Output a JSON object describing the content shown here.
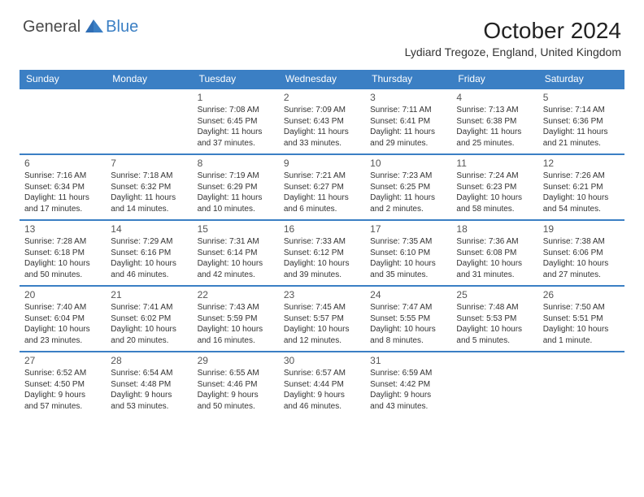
{
  "logo": {
    "text1": "General",
    "text2": "Blue"
  },
  "title": "October 2024",
  "location": "Lydiard Tregoze, England, United Kingdom",
  "colors": {
    "header_bg": "#3b7fc4",
    "header_text": "#ffffff",
    "week_border": "#3b7fc4",
    "body_text": "#333333",
    "daynum_text": "#555555",
    "background": "#ffffff"
  },
  "day_labels": [
    "Sunday",
    "Monday",
    "Tuesday",
    "Wednesday",
    "Thursday",
    "Friday",
    "Saturday"
  ],
  "weeks": [
    [
      {
        "n": "",
        "sr": "",
        "ss": "",
        "dl": ""
      },
      {
        "n": "",
        "sr": "",
        "ss": "",
        "dl": ""
      },
      {
        "n": "1",
        "sr": "Sunrise: 7:08 AM",
        "ss": "Sunset: 6:45 PM",
        "dl": "Daylight: 11 hours and 37 minutes."
      },
      {
        "n": "2",
        "sr": "Sunrise: 7:09 AM",
        "ss": "Sunset: 6:43 PM",
        "dl": "Daylight: 11 hours and 33 minutes."
      },
      {
        "n": "3",
        "sr": "Sunrise: 7:11 AM",
        "ss": "Sunset: 6:41 PM",
        "dl": "Daylight: 11 hours and 29 minutes."
      },
      {
        "n": "4",
        "sr": "Sunrise: 7:13 AM",
        "ss": "Sunset: 6:38 PM",
        "dl": "Daylight: 11 hours and 25 minutes."
      },
      {
        "n": "5",
        "sr": "Sunrise: 7:14 AM",
        "ss": "Sunset: 6:36 PM",
        "dl": "Daylight: 11 hours and 21 minutes."
      }
    ],
    [
      {
        "n": "6",
        "sr": "Sunrise: 7:16 AM",
        "ss": "Sunset: 6:34 PM",
        "dl": "Daylight: 11 hours and 17 minutes."
      },
      {
        "n": "7",
        "sr": "Sunrise: 7:18 AM",
        "ss": "Sunset: 6:32 PM",
        "dl": "Daylight: 11 hours and 14 minutes."
      },
      {
        "n": "8",
        "sr": "Sunrise: 7:19 AM",
        "ss": "Sunset: 6:29 PM",
        "dl": "Daylight: 11 hours and 10 minutes."
      },
      {
        "n": "9",
        "sr": "Sunrise: 7:21 AM",
        "ss": "Sunset: 6:27 PM",
        "dl": "Daylight: 11 hours and 6 minutes."
      },
      {
        "n": "10",
        "sr": "Sunrise: 7:23 AM",
        "ss": "Sunset: 6:25 PM",
        "dl": "Daylight: 11 hours and 2 minutes."
      },
      {
        "n": "11",
        "sr": "Sunrise: 7:24 AM",
        "ss": "Sunset: 6:23 PM",
        "dl": "Daylight: 10 hours and 58 minutes."
      },
      {
        "n": "12",
        "sr": "Sunrise: 7:26 AM",
        "ss": "Sunset: 6:21 PM",
        "dl": "Daylight: 10 hours and 54 minutes."
      }
    ],
    [
      {
        "n": "13",
        "sr": "Sunrise: 7:28 AM",
        "ss": "Sunset: 6:18 PM",
        "dl": "Daylight: 10 hours and 50 minutes."
      },
      {
        "n": "14",
        "sr": "Sunrise: 7:29 AM",
        "ss": "Sunset: 6:16 PM",
        "dl": "Daylight: 10 hours and 46 minutes."
      },
      {
        "n": "15",
        "sr": "Sunrise: 7:31 AM",
        "ss": "Sunset: 6:14 PM",
        "dl": "Daylight: 10 hours and 42 minutes."
      },
      {
        "n": "16",
        "sr": "Sunrise: 7:33 AM",
        "ss": "Sunset: 6:12 PM",
        "dl": "Daylight: 10 hours and 39 minutes."
      },
      {
        "n": "17",
        "sr": "Sunrise: 7:35 AM",
        "ss": "Sunset: 6:10 PM",
        "dl": "Daylight: 10 hours and 35 minutes."
      },
      {
        "n": "18",
        "sr": "Sunrise: 7:36 AM",
        "ss": "Sunset: 6:08 PM",
        "dl": "Daylight: 10 hours and 31 minutes."
      },
      {
        "n": "19",
        "sr": "Sunrise: 7:38 AM",
        "ss": "Sunset: 6:06 PM",
        "dl": "Daylight: 10 hours and 27 minutes."
      }
    ],
    [
      {
        "n": "20",
        "sr": "Sunrise: 7:40 AM",
        "ss": "Sunset: 6:04 PM",
        "dl": "Daylight: 10 hours and 23 minutes."
      },
      {
        "n": "21",
        "sr": "Sunrise: 7:41 AM",
        "ss": "Sunset: 6:02 PM",
        "dl": "Daylight: 10 hours and 20 minutes."
      },
      {
        "n": "22",
        "sr": "Sunrise: 7:43 AM",
        "ss": "Sunset: 5:59 PM",
        "dl": "Daylight: 10 hours and 16 minutes."
      },
      {
        "n": "23",
        "sr": "Sunrise: 7:45 AM",
        "ss": "Sunset: 5:57 PM",
        "dl": "Daylight: 10 hours and 12 minutes."
      },
      {
        "n": "24",
        "sr": "Sunrise: 7:47 AM",
        "ss": "Sunset: 5:55 PM",
        "dl": "Daylight: 10 hours and 8 minutes."
      },
      {
        "n": "25",
        "sr": "Sunrise: 7:48 AM",
        "ss": "Sunset: 5:53 PM",
        "dl": "Daylight: 10 hours and 5 minutes."
      },
      {
        "n": "26",
        "sr": "Sunrise: 7:50 AM",
        "ss": "Sunset: 5:51 PM",
        "dl": "Daylight: 10 hours and 1 minute."
      }
    ],
    [
      {
        "n": "27",
        "sr": "Sunrise: 6:52 AM",
        "ss": "Sunset: 4:50 PM",
        "dl": "Daylight: 9 hours and 57 minutes."
      },
      {
        "n": "28",
        "sr": "Sunrise: 6:54 AM",
        "ss": "Sunset: 4:48 PM",
        "dl": "Daylight: 9 hours and 53 minutes."
      },
      {
        "n": "29",
        "sr": "Sunrise: 6:55 AM",
        "ss": "Sunset: 4:46 PM",
        "dl": "Daylight: 9 hours and 50 minutes."
      },
      {
        "n": "30",
        "sr": "Sunrise: 6:57 AM",
        "ss": "Sunset: 4:44 PM",
        "dl": "Daylight: 9 hours and 46 minutes."
      },
      {
        "n": "31",
        "sr": "Sunrise: 6:59 AM",
        "ss": "Sunset: 4:42 PM",
        "dl": "Daylight: 9 hours and 43 minutes."
      },
      {
        "n": "",
        "sr": "",
        "ss": "",
        "dl": ""
      },
      {
        "n": "",
        "sr": "",
        "ss": "",
        "dl": ""
      }
    ]
  ]
}
